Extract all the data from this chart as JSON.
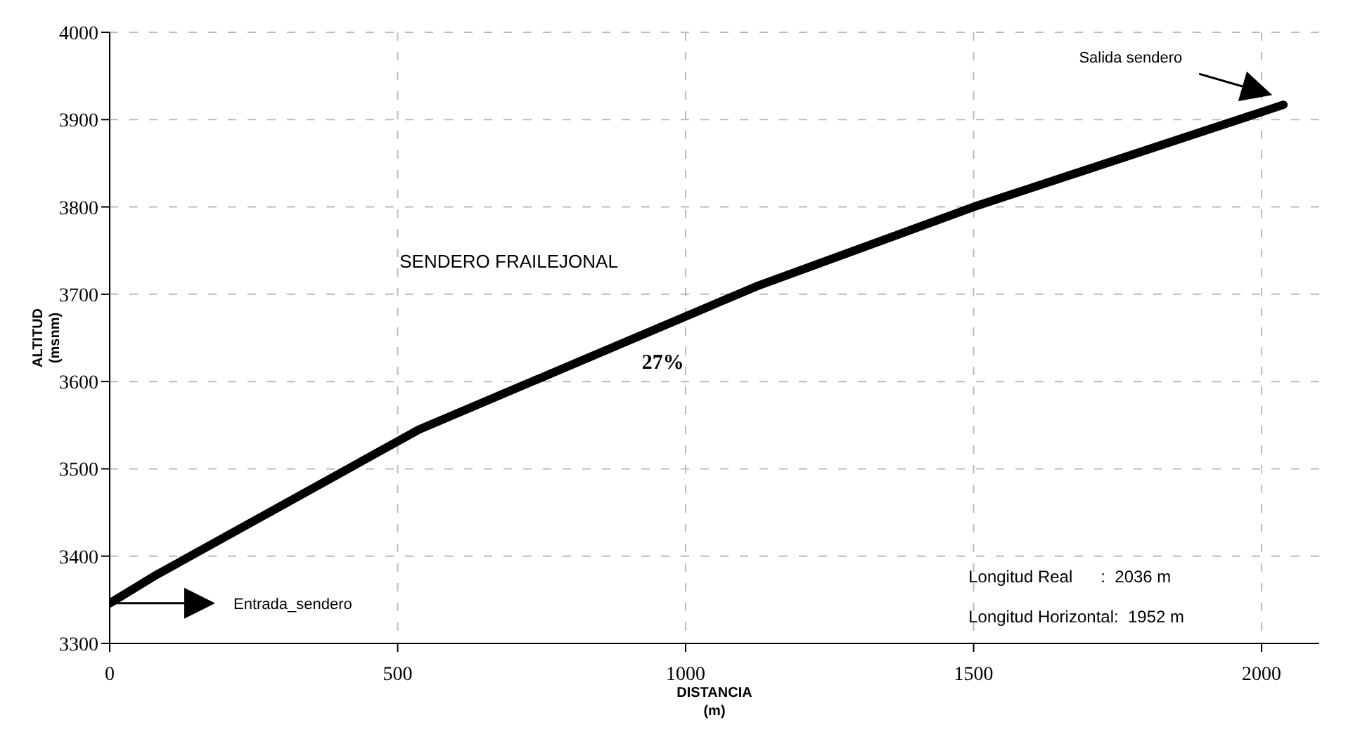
{
  "chart_data": {
    "type": "line",
    "title": "SENDERO FRAILEJONAL",
    "xlabel": "DISTANCIA (m)",
    "ylabel": "ALTITUD (msnm)",
    "x": [
      0,
      77,
      537,
      1123,
      1500,
      2038
    ],
    "series": [
      {
        "color": "#000000",
        "values": [
          3346,
          3377,
          3545,
          3709,
          3800,
          3917
        ]
      }
    ],
    "xlim": [
      0,
      2100
    ],
    "xticks": [
      0,
      500,
      1000,
      1500,
      2000
    ],
    "ylim": [
      3300,
      4000
    ],
    "yticks": [
      3300,
      3400,
      3500,
      3600,
      3700,
      3800,
      3900,
      4000
    ],
    "grid": true,
    "marker": "none",
    "line_style": "solid",
    "annotations": [
      "Entrada_sendero",
      "Salida sendero",
      "27%",
      "Longitud Real      :  2036 m",
      "Longitud Horizontal:  1952 m"
    ]
  }
}
